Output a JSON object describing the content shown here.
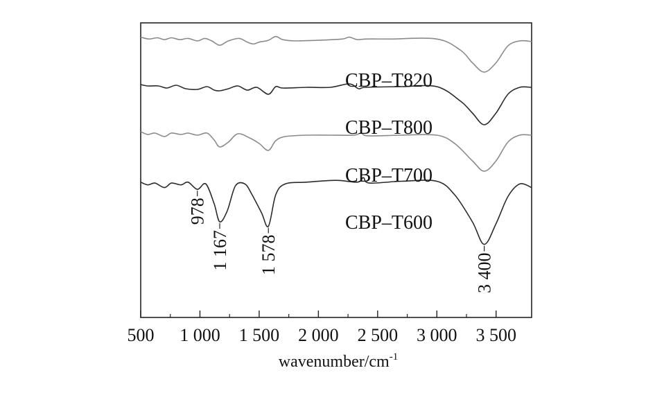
{
  "chart_data": {
    "type": "line",
    "title": "",
    "xlabel": "wavenumber/cm",
    "xlabel_sup": "-1",
    "ylabel": "",
    "xlim": [
      500,
      3800
    ],
    "x_ticks": [
      500,
      1000,
      1500,
      2000,
      2500,
      3000,
      3500
    ],
    "x_tick_labels": [
      "500",
      "1 000",
      "1 500",
      "2 000",
      "2 500",
      "3 000",
      "3 500"
    ],
    "grid": false,
    "series": [
      {
        "name": "CBP–T820",
        "color": "#8a8a8a",
        "points": [
          [
            500,
            0.96
          ],
          [
            570,
            0.93
          ],
          [
            640,
            0.95
          ],
          [
            700,
            0.92
          ],
          [
            760,
            0.95
          ],
          [
            830,
            0.92
          ],
          [
            900,
            0.94
          ],
          [
            980,
            0.9
          ],
          [
            1040,
            0.94
          ],
          [
            1100,
            0.9
          ],
          [
            1167,
            0.83
          ],
          [
            1240,
            0.9
          ],
          [
            1330,
            0.94
          ],
          [
            1400,
            0.88
          ],
          [
            1450,
            0.85
          ],
          [
            1500,
            0.88
          ],
          [
            1578,
            0.91
          ],
          [
            1640,
            0.97
          ],
          [
            1700,
            0.92
          ],
          [
            1800,
            0.9
          ],
          [
            2000,
            0.91
          ],
          [
            2200,
            0.93
          ],
          [
            2260,
            0.96
          ],
          [
            2330,
            0.92
          ],
          [
            2400,
            0.93
          ],
          [
            2600,
            0.93
          ],
          [
            3000,
            0.93
          ],
          [
            3200,
            0.75
          ],
          [
            3300,
            0.55
          ],
          [
            3400,
            0.4
          ],
          [
            3500,
            0.55
          ],
          [
            3600,
            0.82
          ],
          [
            3700,
            0.9
          ],
          [
            3800,
            0.89
          ]
        ]
      },
      {
        "name": "CBP–T800",
        "color": "#2a2a2a",
        "points": [
          [
            500,
            0.96
          ],
          [
            560,
            0.94
          ],
          [
            650,
            0.94
          ],
          [
            720,
            0.91
          ],
          [
            800,
            0.95
          ],
          [
            880,
            0.9
          ],
          [
            978,
            0.89
          ],
          [
            1060,
            0.93
          ],
          [
            1120,
            0.88
          ],
          [
            1167,
            0.87
          ],
          [
            1240,
            0.9
          ],
          [
            1320,
            0.94
          ],
          [
            1400,
            0.88
          ],
          [
            1480,
            0.92
          ],
          [
            1578,
            0.82
          ],
          [
            1640,
            0.93
          ],
          [
            1700,
            0.91
          ],
          [
            1900,
            0.92
          ],
          [
            2100,
            0.92
          ],
          [
            2260,
            0.97
          ],
          [
            2340,
            0.9
          ],
          [
            2400,
            0.92
          ],
          [
            2700,
            0.93
          ],
          [
            3000,
            0.93
          ],
          [
            3200,
            0.72
          ],
          [
            3300,
            0.55
          ],
          [
            3400,
            0.38
          ],
          [
            3500,
            0.55
          ],
          [
            3600,
            0.82
          ],
          [
            3700,
            0.92
          ],
          [
            3800,
            0.92
          ]
        ]
      },
      {
        "name": "CBP–T700",
        "color": "#8a8a8a",
        "points": [
          [
            500,
            0.97
          ],
          [
            560,
            0.93
          ],
          [
            620,
            0.95
          ],
          [
            700,
            0.9
          ],
          [
            760,
            0.95
          ],
          [
            840,
            0.93
          ],
          [
            900,
            0.95
          ],
          [
            978,
            0.92
          ],
          [
            1060,
            0.95
          ],
          [
            1120,
            0.85
          ],
          [
            1167,
            0.75
          ],
          [
            1240,
            0.82
          ],
          [
            1320,
            0.94
          ],
          [
            1420,
            0.88
          ],
          [
            1500,
            0.8
          ],
          [
            1578,
            0.7
          ],
          [
            1640,
            0.84
          ],
          [
            1720,
            0.9
          ],
          [
            1900,
            0.92
          ],
          [
            2100,
            0.92
          ],
          [
            2300,
            0.92
          ],
          [
            2360,
            0.95
          ],
          [
            2420,
            0.91
          ],
          [
            2700,
            0.92
          ],
          [
            3000,
            0.92
          ],
          [
            3150,
            0.8
          ],
          [
            3300,
            0.55
          ],
          [
            3400,
            0.4
          ],
          [
            3500,
            0.55
          ],
          [
            3600,
            0.82
          ],
          [
            3700,
            0.92
          ],
          [
            3800,
            0.92
          ]
        ]
      },
      {
        "name": "CBP–T600",
        "color": "#2a2a2a",
        "points": [
          [
            500,
            0.94
          ],
          [
            560,
            0.91
          ],
          [
            620,
            0.93
          ],
          [
            700,
            0.88
          ],
          [
            760,
            0.93
          ],
          [
            840,
            0.91
          ],
          [
            900,
            0.94
          ],
          [
            978,
            0.86
          ],
          [
            1050,
            0.92
          ],
          [
            1120,
            0.7
          ],
          [
            1167,
            0.5
          ],
          [
            1230,
            0.62
          ],
          [
            1300,
            0.9
          ],
          [
            1380,
            0.92
          ],
          [
            1440,
            0.8
          ],
          [
            1520,
            0.6
          ],
          [
            1578,
            0.45
          ],
          [
            1640,
            0.8
          ],
          [
            1720,
            0.92
          ],
          [
            1900,
            0.94
          ],
          [
            2150,
            0.96
          ],
          [
            2330,
            0.94
          ],
          [
            2380,
            0.99
          ],
          [
            2430,
            0.93
          ],
          [
            2700,
            0.95
          ],
          [
            3000,
            0.95
          ],
          [
            3150,
            0.8
          ],
          [
            3300,
            0.5
          ],
          [
            3400,
            0.25
          ],
          [
            3500,
            0.48
          ],
          [
            3600,
            0.78
          ],
          [
            3700,
            0.92
          ],
          [
            3800,
            0.88
          ]
        ]
      }
    ],
    "annotations": [
      {
        "text": "978",
        "x": 978,
        "series": "CBP–T600"
      },
      {
        "text": "1 167",
        "x": 1167,
        "series": "CBP–T600"
      },
      {
        "text": "1 578",
        "x": 1578,
        "series": "CBP–T600"
      },
      {
        "text": "3 400",
        "x": 3400,
        "series": "CBP–T600"
      }
    ]
  }
}
